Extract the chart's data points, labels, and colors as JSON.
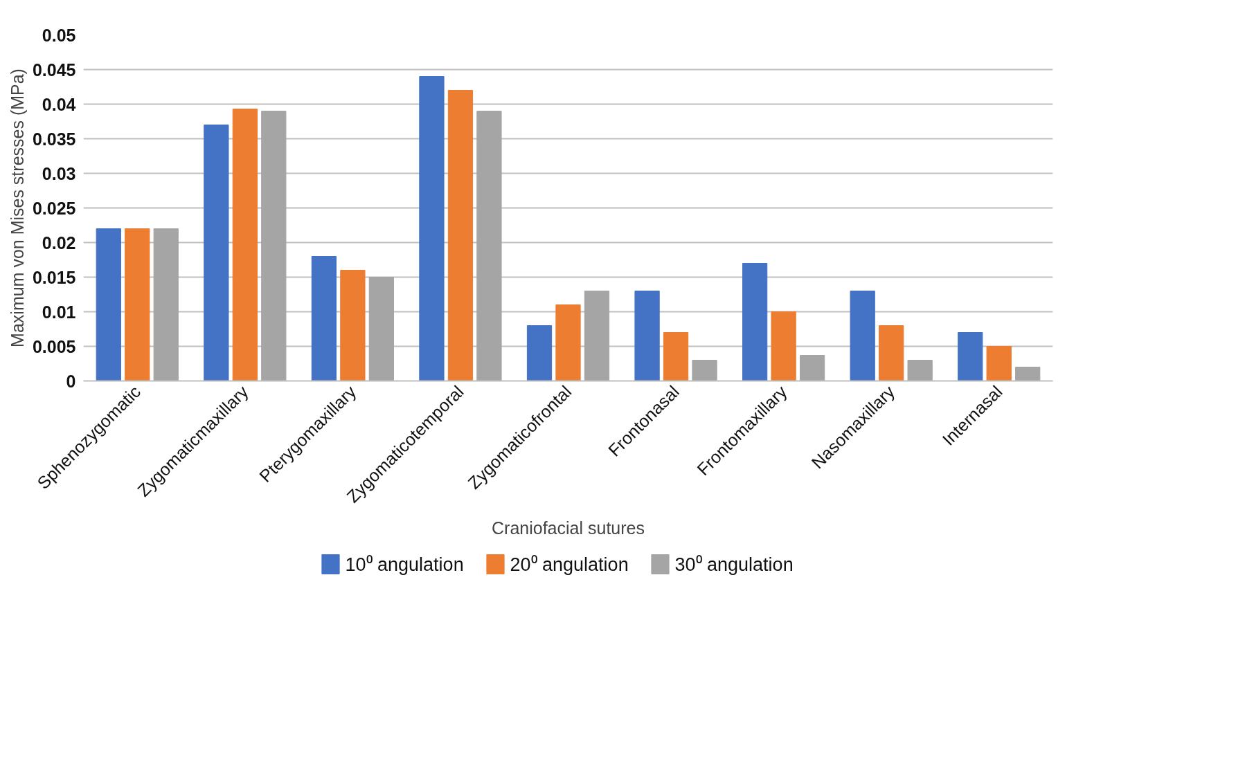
{
  "chart_data": {
    "type": "bar",
    "xlabel": "Craniofacial sutures",
    "ylabel": "Maximum von Mises stresses (MPa)",
    "categories": [
      "Sphenozygomatic",
      "Zygomaticmaxillary",
      "Pterygomaxillary",
      "Zygomaticotemporal",
      "Zygomaticofrontal",
      "Frontonasal",
      "Frontomaxillary",
      "Nasomaxillary",
      "Internasal"
    ],
    "series": [
      {
        "name": "10⁰ angulation",
        "color": "#4472c4",
        "values": [
          0.022,
          0.037,
          0.018,
          0.044,
          0.008,
          0.013,
          0.017,
          0.013,
          0.007
        ]
      },
      {
        "name": "20⁰ angulation",
        "color": "#ed7d31",
        "values": [
          0.022,
          0.0393,
          0.016,
          0.042,
          0.011,
          0.007,
          0.01,
          0.008,
          0.005
        ]
      },
      {
        "name": "30⁰ angulation",
        "color": "#a5a5a5",
        "values": [
          0.022,
          0.039,
          0.015,
          0.039,
          0.013,
          0.003,
          0.0037,
          0.003,
          0.002
        ]
      }
    ],
    "ylim": [
      0,
      0.05
    ],
    "yticks": [
      0,
      0.005,
      0.01,
      0.015,
      0.02,
      0.025,
      0.03,
      0.035,
      0.04,
      0.045,
      0.05
    ],
    "grid": "y",
    "legend": "bottom"
  }
}
